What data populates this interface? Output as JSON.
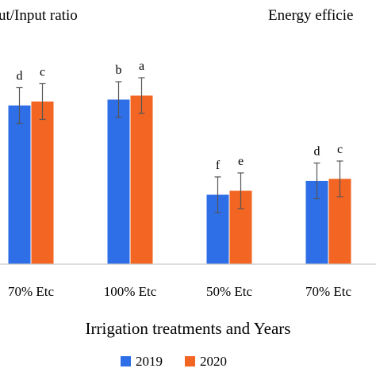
{
  "chart_data": {
    "type": "bar",
    "title_left": "ut/Input ratio",
    "title_right": "Energy efficie",
    "xlabel": "Irrigation treatments and Years",
    "categories": [
      "70% Etc",
      "100% Etc",
      "50% Etc",
      "70% Etc"
    ],
    "series": [
      {
        "name": "2019",
        "color": "#2e6fe8",
        "values": [
          0.8,
          0.83,
          0.35,
          0.42
        ],
        "errors": [
          0.09,
          0.09,
          0.09,
          0.09
        ],
        "letters": [
          "d",
          "b",
          "f",
          "d"
        ]
      },
      {
        "name": "2020",
        "color": "#f26522",
        "values": [
          0.82,
          0.85,
          0.37,
          0.43
        ],
        "errors": [
          0.09,
          0.09,
          0.09,
          0.09
        ],
        "letters": [
          "c",
          "a",
          "e",
          "c"
        ]
      }
    ],
    "ylim": [
      0,
      1.2
    ],
    "grid": false,
    "legend_position": "bottom-center"
  }
}
